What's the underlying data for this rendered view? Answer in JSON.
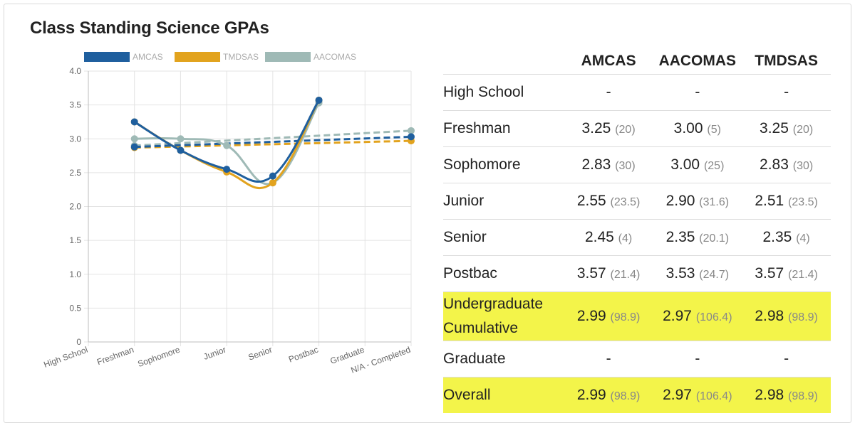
{
  "title": "Class Standing Science GPAs",
  "chart_data": {
    "type": "line",
    "title": "Class Standing Science GPAs",
    "categories": [
      "High School",
      "Freshman",
      "Sophomore",
      "Junior",
      "Senior",
      "Postbac",
      "Graduate",
      "N/A - Completed"
    ],
    "ylim": [
      0,
      4
    ],
    "yticks": [
      "0",
      "0.5",
      "1.0",
      "1.5",
      "2.0",
      "2.5",
      "3.0",
      "3.5",
      "4.0"
    ],
    "legend_position": "top",
    "grid": true,
    "series": [
      {
        "name": "AMCAS",
        "color": "#1f5f9e",
        "values": [
          null,
          3.25,
          2.83,
          2.55,
          2.45,
          3.57,
          null,
          null
        ]
      },
      {
        "name": "TMDSAS",
        "color": "#e2a31e",
        "values": [
          null,
          3.25,
          2.83,
          2.51,
          2.35,
          3.57,
          null,
          null
        ]
      },
      {
        "name": "AACOMAS",
        "color": "#9fbab6",
        "values": [
          null,
          3.0,
          3.0,
          2.9,
          2.35,
          3.53,
          null,
          null
        ]
      }
    ],
    "trend_lines": [
      {
        "series": "AMCAS",
        "color": "#1f5f9e",
        "from": [
          1,
          2.88
        ],
        "to": [
          7,
          3.03
        ]
      },
      {
        "series": "TMDSAS",
        "color": "#e2a31e",
        "from": [
          1,
          2.87
        ],
        "to": [
          7,
          2.97
        ]
      },
      {
        "series": "AACOMAS",
        "color": "#9fbab6",
        "from": [
          1,
          2.9
        ],
        "to": [
          7,
          3.12
        ]
      }
    ]
  },
  "table": {
    "headers": [
      "",
      "AMCAS",
      "AACOMAS",
      "TMDSAS"
    ],
    "rows": [
      {
        "label": "High School",
        "highlight": false,
        "cells": [
          {
            "v": "-",
            "n": ""
          },
          {
            "v": "-",
            "n": ""
          },
          {
            "v": "-",
            "n": ""
          }
        ]
      },
      {
        "label": "Freshman",
        "highlight": false,
        "cells": [
          {
            "v": "3.25",
            "n": "(20)"
          },
          {
            "v": "3.00",
            "n": "(5)"
          },
          {
            "v": "3.25",
            "n": "(20)"
          }
        ]
      },
      {
        "label": "Sophomore",
        "highlight": false,
        "cells": [
          {
            "v": "2.83",
            "n": "(30)"
          },
          {
            "v": "3.00",
            "n": "(25)"
          },
          {
            "v": "2.83",
            "n": "(30)"
          }
        ]
      },
      {
        "label": "Junior",
        "highlight": false,
        "cells": [
          {
            "v": "2.55",
            "n": "(23.5)"
          },
          {
            "v": "2.90",
            "n": "(31.6)"
          },
          {
            "v": "2.51",
            "n": "(23.5)"
          }
        ]
      },
      {
        "label": "Senior",
        "highlight": false,
        "cells": [
          {
            "v": "2.45",
            "n": "(4)"
          },
          {
            "v": "2.35",
            "n": "(20.1)"
          },
          {
            "v": "2.35",
            "n": "(4)"
          }
        ]
      },
      {
        "label": "Postbac",
        "highlight": false,
        "cells": [
          {
            "v": "3.57",
            "n": "(21.4)"
          },
          {
            "v": "3.53",
            "n": "(24.7)"
          },
          {
            "v": "3.57",
            "n": "(21.4)"
          }
        ]
      },
      {
        "label": "Undergraduate Cumulative",
        "highlight": true,
        "cells": [
          {
            "v": "2.99",
            "n": "(98.9)"
          },
          {
            "v": "2.97",
            "n": "(106.4)"
          },
          {
            "v": "2.98",
            "n": "(98.9)"
          }
        ]
      },
      {
        "label": "Graduate",
        "highlight": false,
        "cells": [
          {
            "v": "-",
            "n": ""
          },
          {
            "v": "-",
            "n": ""
          },
          {
            "v": "-",
            "n": ""
          }
        ]
      },
      {
        "label": "Overall",
        "highlight": true,
        "cells": [
          {
            "v": "2.99",
            "n": "(98.9)"
          },
          {
            "v": "2.97",
            "n": "(106.4)"
          },
          {
            "v": "2.98",
            "n": "(98.9)"
          }
        ]
      }
    ]
  }
}
